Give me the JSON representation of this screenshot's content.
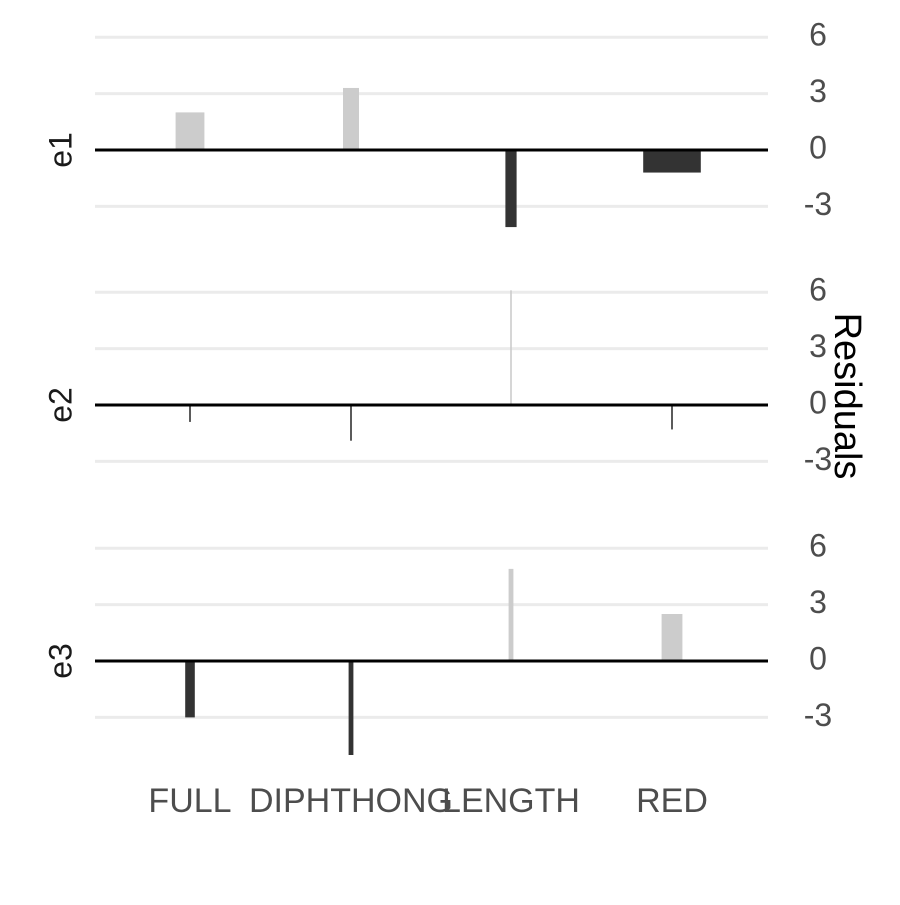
{
  "chart_data": {
    "type": "bar",
    "ylabel": "Residuals",
    "categories": [
      "FULL",
      "DIPHTHONG",
      "LENGTH",
      "RED"
    ],
    "yticks": [
      6,
      3,
      0,
      -3
    ],
    "ylim": [
      -5,
      6
    ],
    "grid": true,
    "colors": {
      "positive": "#cccccc",
      "negative": "#333333",
      "grid": "#ebebeb",
      "zero": "#000000",
      "text": "#4d4d4d"
    },
    "panels": [
      {
        "name": "e1",
        "values": [
          2.0,
          3.3,
          -4.1,
          -1.2
        ],
        "widths": [
          0.18,
          0.1,
          0.07,
          0.36
        ]
      },
      {
        "name": "e2",
        "values": [
          -0.9,
          -1.9,
          6.1,
          -1.3
        ],
        "widths": [
          0.01,
          0.01,
          0.01,
          0.01
        ]
      },
      {
        "name": "e3",
        "values": [
          -3.0,
          -5.0,
          4.9,
          2.5
        ],
        "widths": [
          0.06,
          0.03,
          0.03,
          0.13
        ]
      }
    ]
  }
}
